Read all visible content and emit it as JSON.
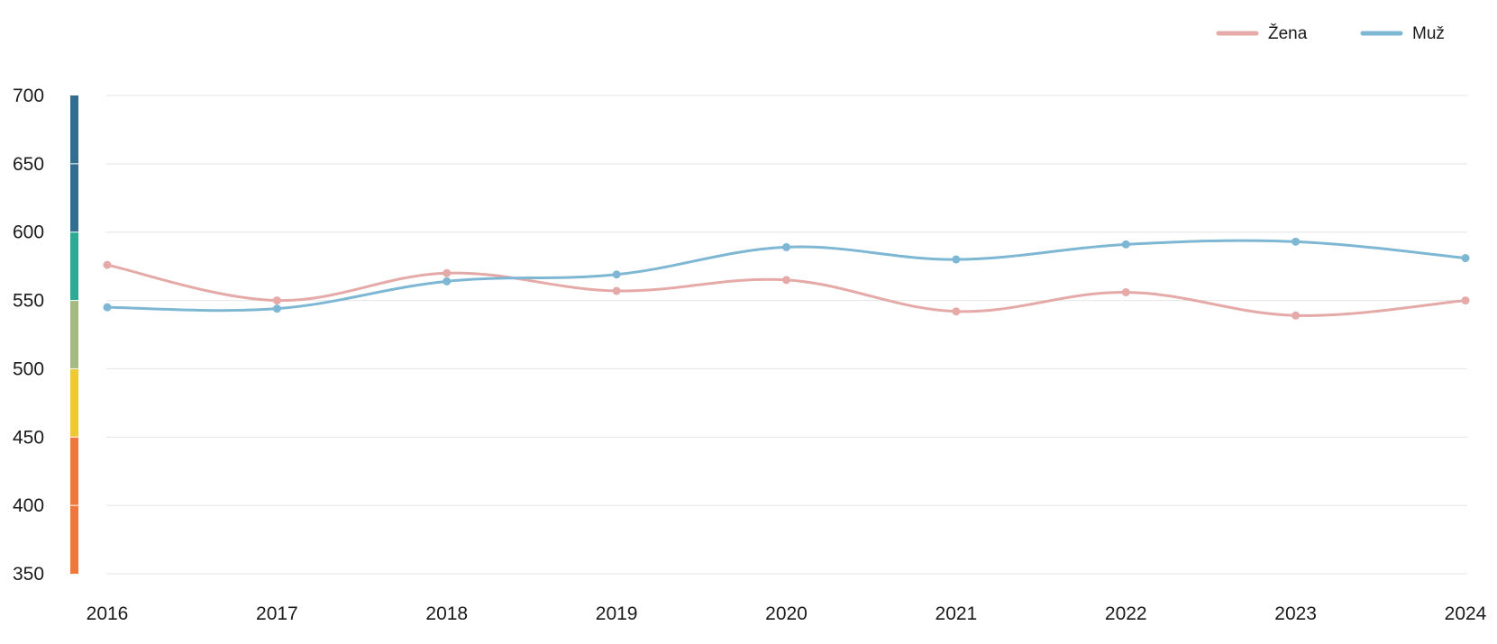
{
  "chart_data": {
    "type": "line",
    "title": "",
    "xlabel": "",
    "ylabel": "",
    "x": [
      "2016",
      "2017",
      "2018",
      "2019",
      "2020",
      "2021",
      "2022",
      "2023",
      "2024"
    ],
    "ylim": [
      350,
      700
    ],
    "yticks": [
      "350",
      "400",
      "450",
      "500",
      "550",
      "600",
      "650",
      "700"
    ],
    "grid": true,
    "legend_position": "top-right",
    "series": [
      {
        "name": "Žena",
        "color": "#e5aaa8",
        "values": [
          576,
          550,
          570,
          557,
          565,
          542,
          556,
          539,
          550
        ]
      },
      {
        "name": "Muž",
        "color": "#7db7d3",
        "values": [
          545,
          544,
          564,
          569,
          589,
          580,
          591,
          593,
          581
        ]
      }
    ],
    "scale_bands": [
      {
        "from": 350,
        "to": 450,
        "color": "#f2763a"
      },
      {
        "from": 450,
        "to": 500,
        "color": "#eec932"
      },
      {
        "from": 500,
        "to": 550,
        "color": "#a5ba80"
      },
      {
        "from": 550,
        "to": 600,
        "color": "#2aab93"
      },
      {
        "from": 600,
        "to": 700,
        "color": "#336e90"
      }
    ]
  }
}
